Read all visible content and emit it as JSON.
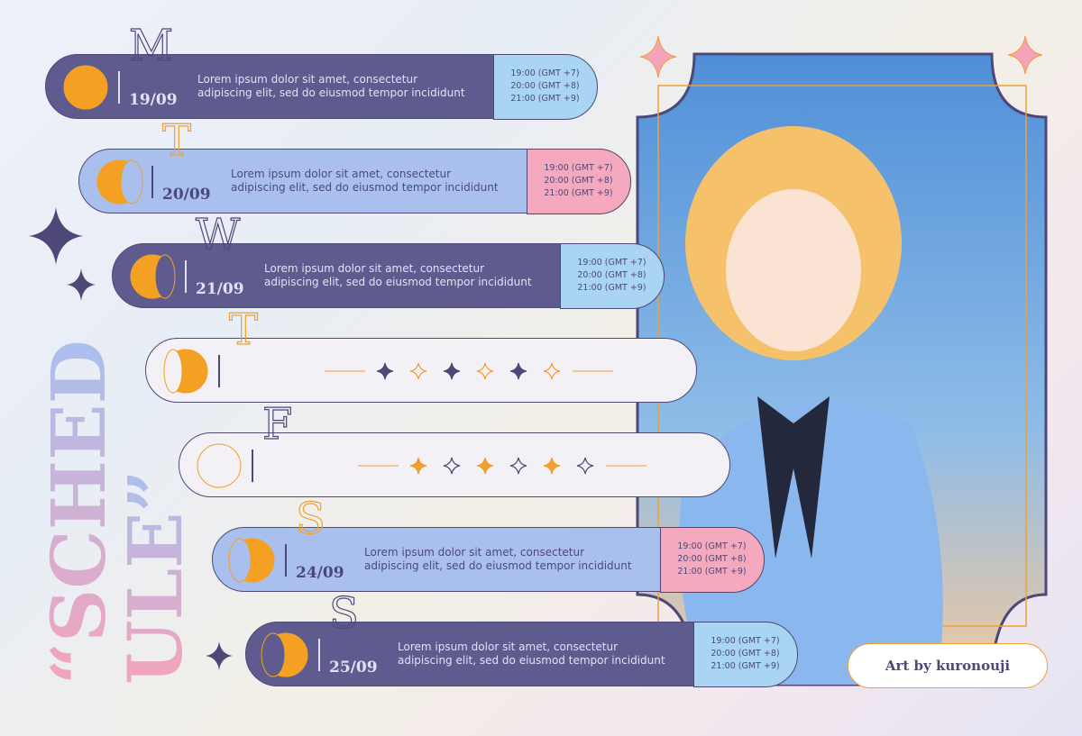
{
  "title": [
    "“SCHED",
    "ULE”"
  ],
  "credit": "Art by kuronouji",
  "rows": [
    {
      "day": "M",
      "date": "19/09",
      "color": "#5f5b8f",
      "time_color": "#a9d5f3",
      "description": [
        "Lorem ipsum dolor sit amet, consectetur",
        "adipiscing elit, sed do eiusmod tempor incididunt"
      ],
      "times": [
        "19:00 (GMT +7)",
        "20:00 (GMT +8)",
        "21:00 (GMT +9)"
      ]
    },
    {
      "day": "T",
      "date": "20/09",
      "color": "#a9c0ef",
      "time_color": "#f5a9be",
      "description": [
        "Lorem ipsum dolor sit amet, consectetur",
        "adipiscing elit, sed do eiusmod tempor incididunt"
      ],
      "times": [
        "19:00 (GMT +7)",
        "20:00 (GMT +8)",
        "21:00 (GMT +9)"
      ]
    },
    {
      "day": "W",
      "date": "21/09",
      "color": "#5f5b8f",
      "time_color": "#a9d5f3",
      "description": [
        "Lorem ipsum dolor sit amet, consectetur",
        "adipiscing elit, sed do eiusmod tempor incididunt"
      ],
      "times": [
        "19:00 (GMT +7)",
        "20:00 (GMT +8)",
        "21:00 (GMT +9)"
      ]
    },
    {
      "day": "T",
      "color": "#f3f1f5"
    },
    {
      "day": "F",
      "color": "#f3f1f5"
    },
    {
      "day": "S",
      "date": "24/09",
      "color": "#a9c0ef",
      "time_color": "#f5a9be",
      "description": [
        "Lorem ipsum dolor sit amet, consectetur",
        "adipiscing elit, sed do eiusmod tempor incididunt"
      ],
      "times": [
        "19:00 (GMT +7)",
        "20:00 (GMT +8)",
        "21:00 (GMT +9)"
      ]
    },
    {
      "day": "S",
      "date": "25/09",
      "color": "#5f5b8f",
      "time_color": "#a9d5f3",
      "description": [
        "Lorem ipsum dolor sit amet, consectetur",
        "adipiscing elit, sed do eiusmod tempor incididunt"
      ],
      "times": [
        "19:00 (GMT +7)",
        "20:00 (GMT +8)",
        "21:00 (GMT +9)"
      ]
    }
  ]
}
